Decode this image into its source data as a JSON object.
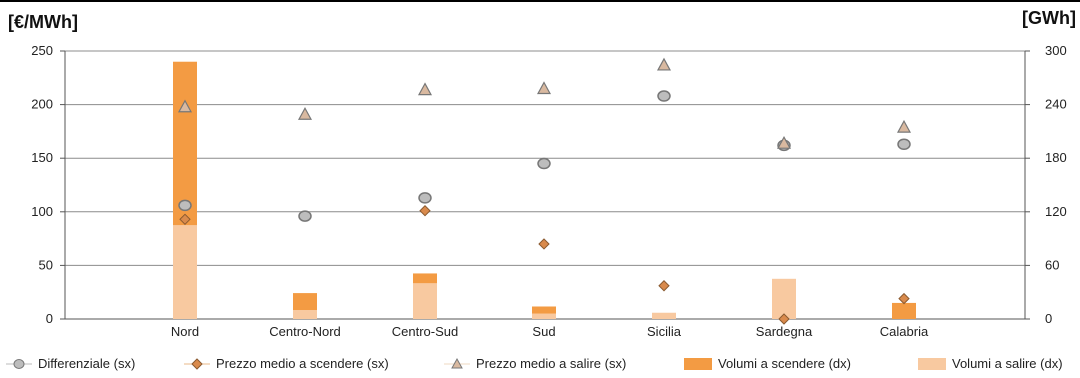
{
  "units": {
    "left": "[€/MWh]",
    "right": "[GWh]"
  },
  "colors": {
    "volumi_scendere": "#F39B43",
    "volumi_salire": "#F8C9A0",
    "differenziale": "#BDBDBD",
    "prezzo_scendere": "#D98A4C",
    "prezzo_salire": "#D9B9A0",
    "grid": "#8C8C8C"
  },
  "chart_data": {
    "type": "bar",
    "categories": [
      "Nord",
      "Centro-Nord",
      "Centro-Sud",
      "Sud",
      "Sicilia",
      "Sardegna",
      "Calabria"
    ],
    "y_left": {
      "ylim": [
        0,
        250
      ],
      "ticks": [
        "0",
        "50",
        "100",
        "150",
        "200",
        "250"
      ]
    },
    "y_right": {
      "ylim": [
        0,
        300
      ],
      "ticks": [
        "0",
        "60",
        "120",
        "180",
        "240",
        "300"
      ]
    },
    "grid": true,
    "legend_position": "bottom",
    "series": [
      {
        "name": "Differenziale (sx)",
        "kind": "marker-circle",
        "axis": "left",
        "values": [
          106,
          96,
          113,
          145,
          208,
          162,
          163
        ]
      },
      {
        "name": "Prezzo medio a scendere (sx)",
        "kind": "marker-diamond",
        "axis": "left",
        "values": [
          93,
          null,
          101,
          70,
          31,
          0,
          19
        ]
      },
      {
        "name": "Prezzo medio a salire (sx)",
        "kind": "marker-triangle",
        "axis": "left",
        "values": [
          198,
          191,
          214,
          215,
          237,
          164,
          179
        ]
      },
      {
        "name": "Volumi a scendere (dx)",
        "kind": "bar",
        "axis": "right",
        "values": [
          183,
          19,
          11,
          8,
          0,
          0,
          18
        ]
      },
      {
        "name": "Volumi a salire (dx)",
        "kind": "bar",
        "axis": "right",
        "values": [
          105,
          10,
          40,
          6,
          7,
          45,
          0
        ]
      }
    ]
  }
}
